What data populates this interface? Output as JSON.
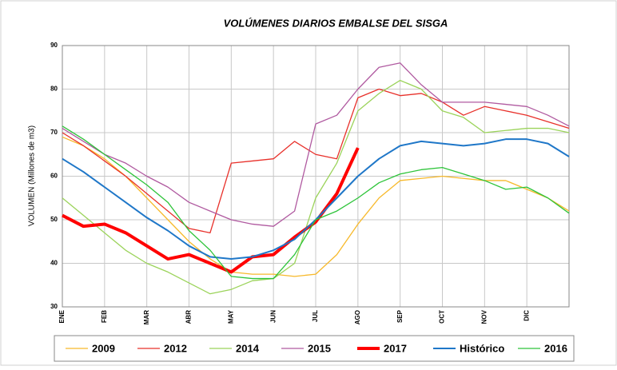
{
  "chart_data": {
    "type": "line",
    "title": "VOLÚMENES DIARIOS EMBALSE DEL SISGA",
    "y_label": "VOLUMEN (Millones de m3)",
    "categories": [
      "ENE",
      null,
      "FEB",
      null,
      "MAR",
      null,
      "ABR",
      null,
      "MAY",
      null,
      "JUN",
      null,
      "JUL",
      null,
      "AGO",
      null,
      "SEP",
      null,
      "OCT",
      null,
      "NOV",
      null,
      "DIC",
      null,
      null
    ],
    "ylim": [
      30,
      90
    ],
    "yticks": [
      30,
      40,
      50,
      60,
      70,
      80,
      90
    ],
    "grid": true,
    "series": [
      {
        "name": "2009",
        "color": "#f7b92b",
        "width": 1.3,
        "values": [
          69,
          67,
          64,
          60,
          55,
          50,
          45,
          41,
          38,
          37.5,
          37.5,
          37,
          37.5,
          42,
          49,
          55,
          59,
          59.5,
          60,
          59.5,
          59,
          59,
          57,
          55,
          52
        ]
      },
      {
        "name": "2012",
        "color": "#e8302a",
        "width": 1.3,
        "values": [
          70,
          67,
          63.5,
          60,
          56,
          52,
          48,
          47,
          63,
          63.5,
          64,
          68,
          65,
          64,
          78,
          80,
          78.5,
          79,
          77,
          74,
          76,
          75,
          74,
          72.5,
          71
        ]
      },
      {
        "name": "2014",
        "color": "#9bd35a",
        "width": 1.3,
        "values": [
          55,
          51,
          47,
          43,
          40,
          38,
          35.5,
          33,
          34,
          36,
          36.5,
          40,
          55,
          63,
          75,
          79,
          82,
          80,
          75,
          73.5,
          70,
          70.5,
          71,
          71,
          70
        ]
      },
      {
        "name": "2015",
        "color": "#b05aa0",
        "width": 1.3,
        "values": [
          71,
          68,
          65,
          63,
          60,
          57.5,
          54,
          52,
          50,
          49,
          48.5,
          52,
          72,
          74,
          80,
          85,
          86,
          81,
          77,
          77,
          77,
          76.5,
          76,
          74,
          71.5
        ]
      },
      {
        "name": "2017",
        "color": "#ff0000",
        "width": 4,
        "values": [
          51,
          48.5,
          49,
          47,
          44,
          41,
          42,
          40,
          38,
          41.5,
          42,
          46,
          49.5,
          56,
          66.5,
          null,
          null,
          null,
          null,
          null,
          null,
          null,
          null,
          null,
          null
        ]
      },
      {
        "name": "Histórico",
        "color": "#1f77c8",
        "width": 2,
        "values": [
          64,
          61,
          57.5,
          54,
          50.5,
          47.5,
          44,
          41.5,
          41,
          41.5,
          43,
          45.5,
          50,
          55,
          60,
          64,
          67,
          68,
          67.5,
          67,
          67.5,
          68.5,
          68.5,
          67.5,
          64.5
        ]
      },
      {
        "name": "2016",
        "color": "#2ec43a",
        "width": 1.3,
        "values": [
          71.5,
          68.5,
          65,
          61.5,
          58,
          54,
          47.5,
          43,
          37,
          36.5,
          36.5,
          42,
          50,
          52,
          55,
          58.5,
          60.5,
          61.5,
          62,
          60.5,
          59,
          57,
          57.5,
          55,
          51.5
        ]
      }
    ]
  }
}
